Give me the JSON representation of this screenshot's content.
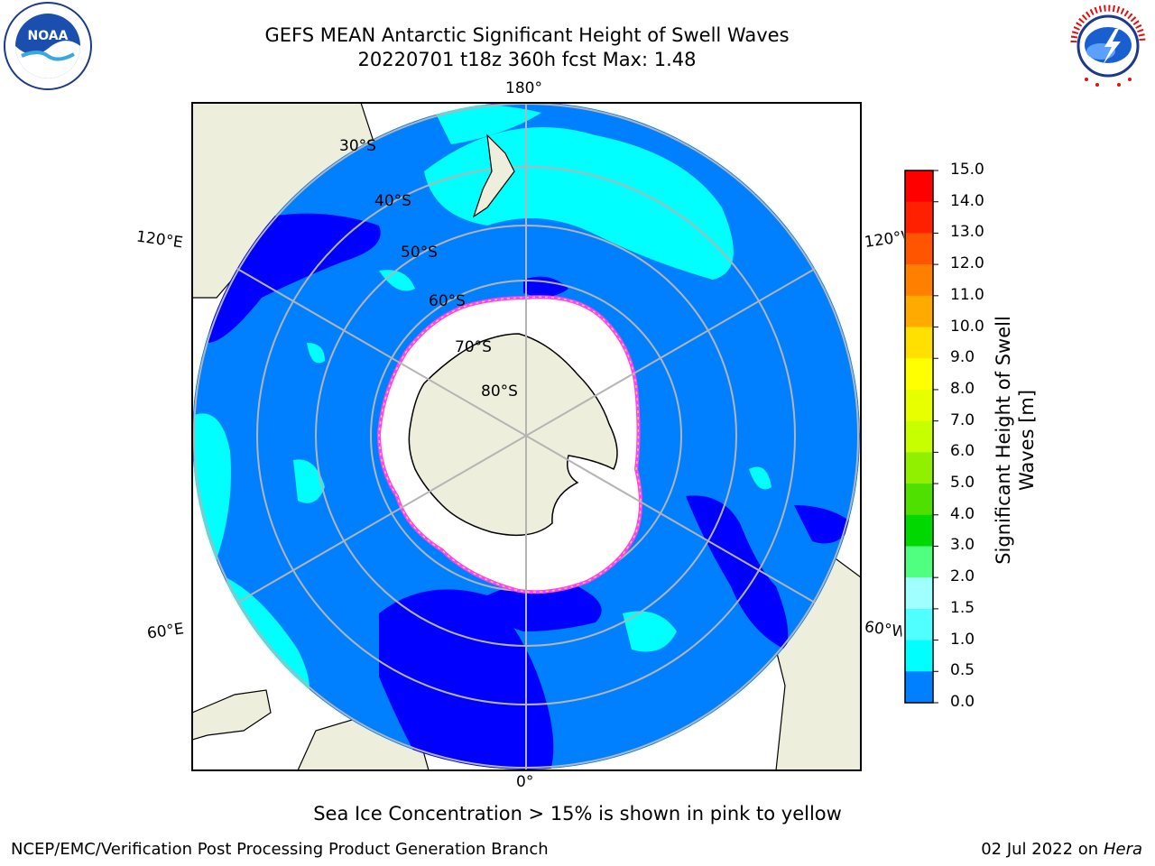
{
  "header": {
    "title_line1": "GEFS MEAN Antarctic Significant Height of Swell Waves",
    "title_line2": "20220701 t18z 360h fcst   Max: 1.48"
  },
  "logos": {
    "left": {
      "name": "noara-logo",
      "text": "NOAA"
    },
    "right": {
      "name": "nws-logo",
      "text": "NATIONAL WEATHER SERVICE"
    }
  },
  "map": {
    "meridian_labels": {
      "top": "180°",
      "bottom": "0°",
      "left_upper": "120°E",
      "left_lower": "60°E",
      "right_upper": "120°W",
      "right_lower": "60°W"
    },
    "latitude_labels": [
      "30°S",
      "40°S",
      "50°S",
      "60°S",
      "70°S",
      "80°S"
    ],
    "colors": {
      "ocean_0_0.5": "#0000ff",
      "ocean_0.5_1.0": "#0080ff",
      "ocean_1.0_1.5": "#00ffff",
      "land": "#eeeedc",
      "sea_ice": "#ffffff",
      "ice_edge": "#ff40ff"
    }
  },
  "colorbar": {
    "label_line1": "Significant Height of Swell",
    "label_line2": "Waves [m]",
    "ticks": [
      "15.0",
      "14.0",
      "13.0",
      "12.0",
      "11.0",
      "10.0",
      "9.0",
      "8.0",
      "7.0",
      "6.0",
      "5.0",
      "4.0",
      "3.0",
      "2.0",
      "1.5",
      "1.0",
      "0.5",
      "0.0"
    ],
    "colors": [
      "#ff0000",
      "#ff2000",
      "#ff5500",
      "#ff8000",
      "#ffaa00",
      "#ffe000",
      "#ffff00",
      "#e8ff00",
      "#c8ff00",
      "#90f000",
      "#50e000",
      "#00d800",
      "#50ff80",
      "#a0ffff",
      "#50ffff",
      "#00ffff",
      "#0080ff",
      "#0000ff"
    ]
  },
  "footer": {
    "note": "Sea Ice Concentration > 15% is shown in pink to yellow",
    "left": "NCEP/EMC/Verification Post Processing Product Generation Branch",
    "date": "02 Jul 2022 on ",
    "host": "Hera"
  }
}
